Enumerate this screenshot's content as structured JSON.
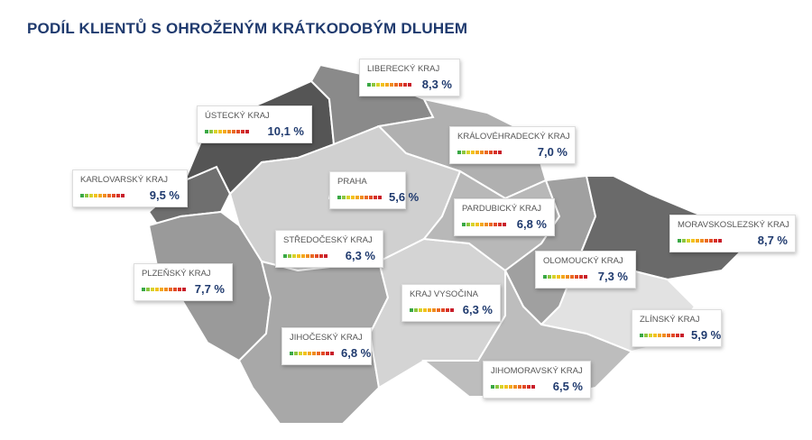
{
  "title": "PODÍL KLIENTŮ S OHROŽENÝM KRÁTKODOBÝM DLUHEM",
  "regions": [
    {
      "name": "LIBERECKÝ KRAJ",
      "value": "8,3 %"
    },
    {
      "name": "ÚSTECKÝ KRAJ",
      "value": "10,1 %"
    },
    {
      "name": "KRÁLOVÉHRADECKÝ KRAJ",
      "value": "7,0 %"
    },
    {
      "name": "KARLOVARSKÝ KRAJ",
      "value": "9,5 %"
    },
    {
      "name": "PRAHA",
      "value": "5,6 %"
    },
    {
      "name": "PARDUBICKÝ KRAJ",
      "value": "6,8 %"
    },
    {
      "name": "MORAVSKOSLEZSKÝ KRAJ",
      "value": "8,7 %"
    },
    {
      "name": "STŘEDOČESKÝ KRAJ",
      "value": "6,3 %"
    },
    {
      "name": "OLOMOUCKÝ KRAJ",
      "value": "7,3 %"
    },
    {
      "name": "PLZEŇSKÝ KRAJ",
      "value": "7,7 %"
    },
    {
      "name": "KRAJ VYSOČINA",
      "value": "6,3 %"
    },
    {
      "name": "ZLÍNSKÝ KRAJ",
      "value": "5,9 %"
    },
    {
      "name": "JIHOČESKÝ KRAJ",
      "value": "6,8 %"
    },
    {
      "name": "JIHOMORAVSKÝ KRAJ",
      "value": "6,5 %"
    }
  ]
}
